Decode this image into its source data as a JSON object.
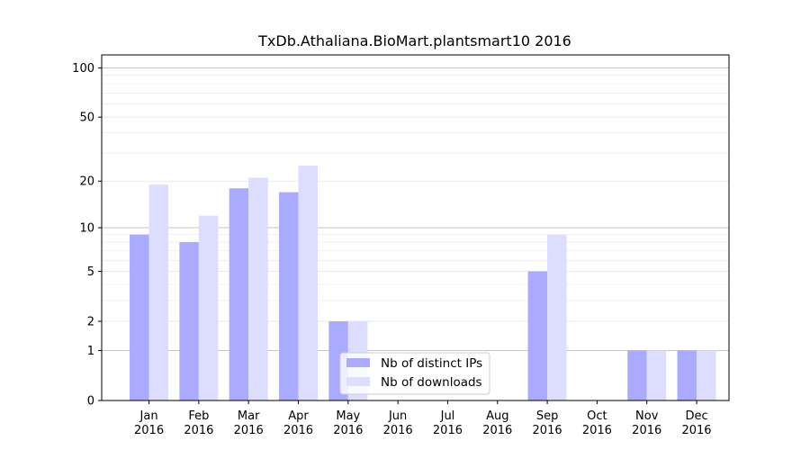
{
  "chart_data": {
    "type": "bar",
    "title": "TxDb.Athaliana.BioMart.plantsmart10 2016",
    "categories": [
      {
        "month": "Jan",
        "year": "2016"
      },
      {
        "month": "Feb",
        "year": "2016"
      },
      {
        "month": "Mar",
        "year": "2016"
      },
      {
        "month": "Apr",
        "year": "2016"
      },
      {
        "month": "May",
        "year": "2016"
      },
      {
        "month": "Jun",
        "year": "2016"
      },
      {
        "month": "Jul",
        "year": "2016"
      },
      {
        "month": "Aug",
        "year": "2016"
      },
      {
        "month": "Sep",
        "year": "2016"
      },
      {
        "month": "Oct",
        "year": "2016"
      },
      {
        "month": "Nov",
        "year": "2016"
      },
      {
        "month": "Dec",
        "year": "2016"
      }
    ],
    "series": [
      {
        "name": "Nb of distinct IPs",
        "color": "#aaaaff",
        "values": [
          9,
          8,
          18,
          17,
          2,
          0,
          0,
          0,
          5,
          0,
          1,
          1
        ]
      },
      {
        "name": "Nb of downloads",
        "color": "#ddddff",
        "values": [
          19,
          12,
          21,
          25,
          2,
          0,
          0,
          0,
          9,
          0,
          1,
          1
        ]
      }
    ],
    "yscale": "log(1+y)",
    "yticks": [
      0,
      1,
      2,
      5,
      10,
      20,
      50,
      100
    ],
    "ylim": [
      0,
      120
    ],
    "grid": true,
    "legend_position": "bottom-center"
  }
}
